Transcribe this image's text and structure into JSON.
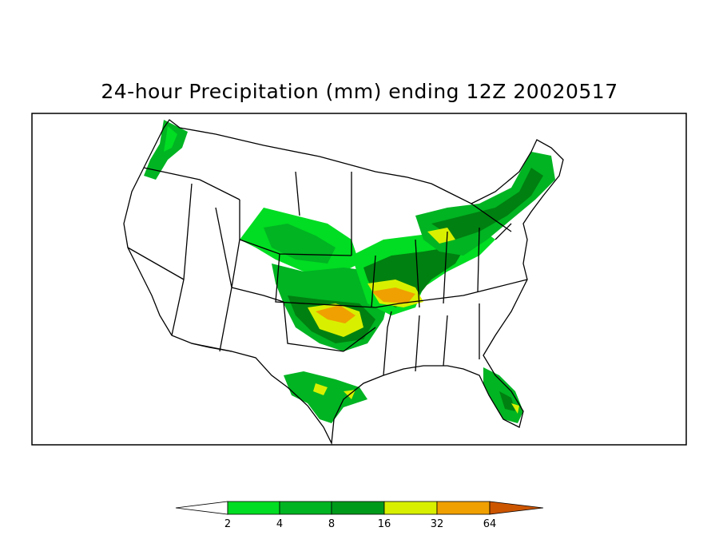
{
  "title": "24-hour Precipitation (mm) ending 12Z 20020517",
  "map": {
    "variable": "24-hour precipitation",
    "units": "mm",
    "region": "Continental United States",
    "valid_time": "12Z 20020517"
  },
  "colorbar": {
    "levels": [
      "2",
      "4",
      "8",
      "16",
      "32",
      "64"
    ],
    "colors": {
      "below": "#ffffff",
      "c1": "#00dd22",
      "c2": "#00b422",
      "c3": "#009a1a",
      "c4": "#008010",
      "c5": "#d8f000",
      "c6": "#f0a000",
      "above": "#cc5500"
    }
  }
}
